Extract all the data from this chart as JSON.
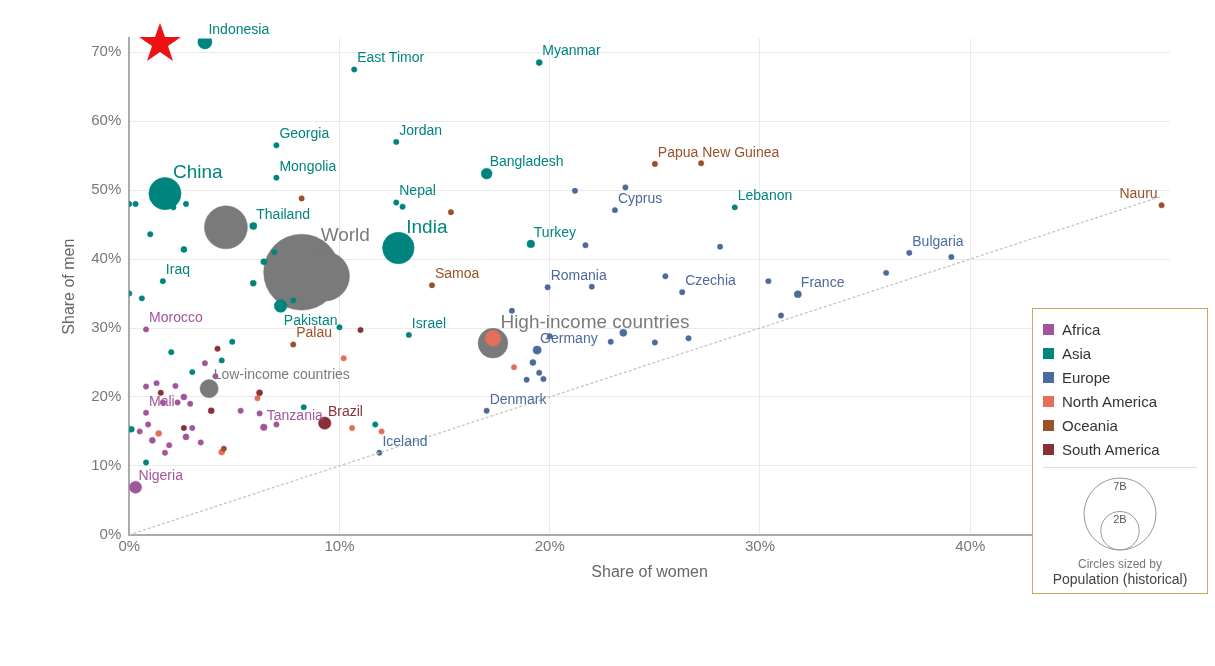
{
  "chart_data": {
    "type": "bubble",
    "xlabel": "Share of women",
    "ylabel": "Share of men",
    "xlim": [
      0,
      49.5
    ],
    "ylim": [
      0,
      72
    ],
    "xticks": [
      {
        "value": 0,
        "label": "0%"
      },
      {
        "value": 10,
        "label": "10%"
      },
      {
        "value": 20,
        "label": "20%"
      },
      {
        "value": 30,
        "label": "30%"
      },
      {
        "value": 40,
        "label": "40%"
      }
    ],
    "yticks": [
      {
        "value": 0,
        "label": "0%"
      },
      {
        "value": 10,
        "label": "10%"
      },
      {
        "value": 20,
        "label": "20%"
      },
      {
        "value": 30,
        "label": "30%"
      },
      {
        "value": 40,
        "label": "40%"
      },
      {
        "value": 50,
        "label": "50%"
      },
      {
        "value": 60,
        "label": "60%"
      },
      {
        "value": 70,
        "label": "70%"
      }
    ],
    "grid": true,
    "legend": "right",
    "size_legend": [
      {
        "value": 7,
        "label": "7B"
      },
      {
        "value": 2,
        "label": "2B"
      }
    ],
    "series": [
      {
        "color": "#7a7a7a",
        "x": [
          8.2,
          9.3,
          4.6,
          3.8,
          17.3
        ],
        "values": [
          38.1,
          37.5,
          44.6,
          21.2,
          27.8
        ],
        "sizes": [
          7.8,
          3.3,
          2.5,
          0.45,
          1.2
        ]
      },
      {
        "name": "Africa",
        "color": "#a2559c",
        "x": [
          0.8,
          0.8,
          6.4,
          0.3,
          0.8,
          1.3,
          2.2,
          1.6,
          2.3,
          3.6,
          0.9,
          1.1,
          1.7,
          2.7,
          3.4,
          5.3,
          6.2,
          2.9,
          4.1,
          0.5,
          1.9,
          3.0,
          7.0,
          2.6
        ],
        "values": [
          29.8,
          17.7,
          15.6,
          6.9,
          21.5,
          22.0,
          21.6,
          19.2,
          19.2,
          24.9,
          16.0,
          13.7,
          11.9,
          14.2,
          13.4,
          18.0,
          17.6,
          19.0,
          23.0,
          15.0,
          13.0,
          15.5,
          16.0,
          20.0
        ],
        "sizes": [
          0.04,
          0.04,
          0.06,
          0.2,
          0.04,
          0.04,
          0.04,
          0.04,
          0.04,
          0.04,
          0.04,
          0.05,
          0.04,
          0.05,
          0.04,
          0.04,
          0.04,
          0.04,
          0.04,
          0.04,
          0.04,
          0.04,
          0.04,
          0.05
        ]
      },
      {
        "name": "Asia",
        "color": "#00847e",
        "x": [
          3.6,
          10.7,
          19.5,
          7.0,
          12.7,
          7.0,
          17.0,
          1.7,
          12.7,
          28.8,
          12.8,
          19.1,
          5.9,
          1.6,
          7.2,
          13.3,
          0,
          0.3,
          1.0,
          2.7,
          2.6,
          6.4,
          6.9,
          0,
          4.9,
          3.0,
          4.4,
          13.0,
          2.0,
          0.6,
          5.9,
          10.0,
          0.8,
          0.1,
          8.3,
          11.7,
          7.8,
          2.1
        ],
        "values": [
          71.5,
          67.5,
          68.5,
          56.5,
          57.0,
          51.8,
          52.4,
          49.5,
          48.2,
          47.5,
          41.6,
          42.2,
          44.8,
          36.8,
          33.2,
          29.0,
          48.0,
          48.0,
          43.6,
          48.0,
          41.4,
          39.6,
          41.0,
          35.0,
          28.0,
          23.6,
          25.3,
          47.6,
          26.5,
          34.3,
          36.5,
          30.1,
          10.5,
          15.3,
          18.5,
          16.0,
          34.0,
          47.5
        ],
        "sizes": [
          0.27,
          0.04,
          0.05,
          0.04,
          0.04,
          0.04,
          0.16,
          1.4,
          0.04,
          0.04,
          1.35,
          0.08,
          0.07,
          0.04,
          0.22,
          0.04,
          0.04,
          0.04,
          0.04,
          0.04,
          0.05,
          0.05,
          0.04,
          0.04,
          0.04,
          0.04,
          0.04,
          0.04,
          0.04,
          0.04,
          0.05,
          0.04,
          0.04,
          0.05,
          0.04,
          0.04,
          0.04,
          0.04
        ]
      },
      {
        "name": "Europe",
        "color": "#4c6a9c",
        "x": [
          23.1,
          37.1,
          39.1,
          19.9,
          26.3,
          31.8,
          19.4,
          17.0,
          11.9,
          20.0,
          22.9,
          23.5,
          26.6,
          19.5,
          19.7,
          18.9,
          19.2,
          31.0,
          36.0,
          30.4,
          25.5,
          28.1,
          21.7,
          23.6,
          21.2,
          22.0,
          25.0,
          18.2
        ],
        "values": [
          47.1,
          40.9,
          40.3,
          35.9,
          35.2,
          34.9,
          26.8,
          18.0,
          11.9,
          28.8,
          28.0,
          29.3,
          28.5,
          23.5,
          22.6,
          22.5,
          25.0,
          31.8,
          38.0,
          36.8,
          37.5,
          41.8,
          42.0,
          50.4,
          49.9,
          36.0,
          27.9,
          32.5
        ],
        "sizes": [
          0.04,
          0.04,
          0.04,
          0.04,
          0.04,
          0.07,
          0.09,
          0.04,
          0.04,
          0.04,
          0.04,
          0.07,
          0.04,
          0.04,
          0.04,
          0.04,
          0.05,
          0.04,
          0.04,
          0.04,
          0.04,
          0.04,
          0.04,
          0.04,
          0.04,
          0.04,
          0.04,
          0.04
        ]
      },
      {
        "name": "North America",
        "color": "#e56e5a",
        "x": [
          17.3,
          10.2,
          10.6,
          12.0,
          18.3,
          4.4,
          1.4,
          6.1
        ],
        "values": [
          28.5,
          25.6,
          15.5,
          15.0,
          24.3,
          12.0,
          14.7,
          19.8
        ],
        "sizes": [
          0.33,
          0.04,
          0.04,
          0.04,
          0.04,
          0.05,
          0.05,
          0.04
        ]
      },
      {
        "name": "Oceania",
        "color": "#9a5129",
        "x": [
          25.0,
          27.2,
          14.4,
          7.8,
          49.1,
          15.3,
          8.2,
          4.5
        ],
        "values": [
          53.8,
          53.9,
          36.2,
          27.6,
          47.8,
          46.8,
          48.8,
          12.5
        ],
        "sizes": [
          0.04,
          0.04,
          0.04,
          0.04,
          0.04,
          0.04,
          0.04,
          0.04
        ]
      },
      {
        "name": "South America",
        "color": "#883039",
        "x": [
          9.3,
          4.2,
          6.2,
          2.6,
          1.5,
          3.9,
          11.0
        ],
        "values": [
          16.2,
          27.0,
          20.6,
          15.5,
          20.6,
          18.0,
          29.7
        ],
        "sizes": [
          0.21,
          0.04,
          0.05,
          0.04,
          0.04,
          0.05,
          0.04
        ]
      },
      {
        "type": "line",
        "color": "#c4c4c4",
        "line_style": "dotted",
        "x": [
          0,
          49
        ],
        "values": [
          0,
          49
        ]
      }
    ],
    "annotations": [
      {
        "text": "Indonesia",
        "x": 3.6,
        "y": 71.5
      },
      {
        "text": "East Timor",
        "x": 10.7,
        "y": 67.5
      },
      {
        "text": "Myanmar",
        "x": 19.5,
        "y": 68.5
      },
      {
        "text": "Georgia",
        "x": 7.0,
        "y": 56.5
      },
      {
        "text": "Jordan",
        "x": 12.7,
        "y": 57.0
      },
      {
        "text": "Mongolia",
        "x": 7.0,
        "y": 51.8
      },
      {
        "text": "Bangladesh",
        "x": 17.0,
        "y": 52.4
      },
      {
        "text": "China",
        "x": 1.7,
        "y": 49.5
      },
      {
        "text": "Nepal",
        "x": 12.7,
        "y": 48.2
      },
      {
        "text": "Lebanon",
        "x": 28.8,
        "y": 47.5
      },
      {
        "text": "India",
        "x": 12.8,
        "y": 41.6
      },
      {
        "text": "Turkey",
        "x": 19.1,
        "y": 42.2
      },
      {
        "text": "Thailand",
        "x": 5.9,
        "y": 44.8
      },
      {
        "text": "Iraq",
        "x": 1.6,
        "y": 36.8
      },
      {
        "text": "Pakistan",
        "x": 7.2,
        "y": 33.2
      },
      {
        "text": "Israel",
        "x": 13.3,
        "y": 29.0
      },
      {
        "text": "Papua New Guinea",
        "x": 25.0,
        "y": 53.8
      },
      {
        "text": "Cyprus",
        "x": 23.1,
        "y": 47.1
      },
      {
        "text": "Nauru",
        "x": 49.1,
        "y": 47.8
      },
      {
        "text": "Bulgaria",
        "x": 37.1,
        "y": 40.9
      },
      {
        "text": "Samoa",
        "x": 14.4,
        "y": 36.2
      },
      {
        "text": "Romania",
        "x": 19.9,
        "y": 35.9
      },
      {
        "text": "Czechia",
        "x": 26.3,
        "y": 35.2
      },
      {
        "text": "France",
        "x": 31.8,
        "y": 34.9
      },
      {
        "text": "World",
        "x": 8.2,
        "y": 38.1
      },
      {
        "text": "High-income countries",
        "x": 17.3,
        "y": 27.8
      },
      {
        "text": "Morocco",
        "x": 0.8,
        "y": 29.8
      },
      {
        "text": "Palau",
        "x": 7.8,
        "y": 27.6
      },
      {
        "text": "Germany",
        "x": 19.4,
        "y": 26.8
      },
      {
        "text": "Low-income countries",
        "x": 3.8,
        "y": 21.2
      },
      {
        "text": "Denmark",
        "x": 17.0,
        "y": 18.0
      },
      {
        "text": "Mali",
        "x": 0.8,
        "y": 17.7
      },
      {
        "text": "Brazil",
        "x": 9.3,
        "y": 16.2
      },
      {
        "text": "Tanzania",
        "x": 6.4,
        "y": 15.6
      },
      {
        "text": "Iceland",
        "x": 11.9,
        "y": 11.9
      },
      {
        "text": "Nigeria",
        "x": 0.3,
        "y": 6.9
      },
      "Circles sized by",
      "Population (historical)"
    ]
  }
}
